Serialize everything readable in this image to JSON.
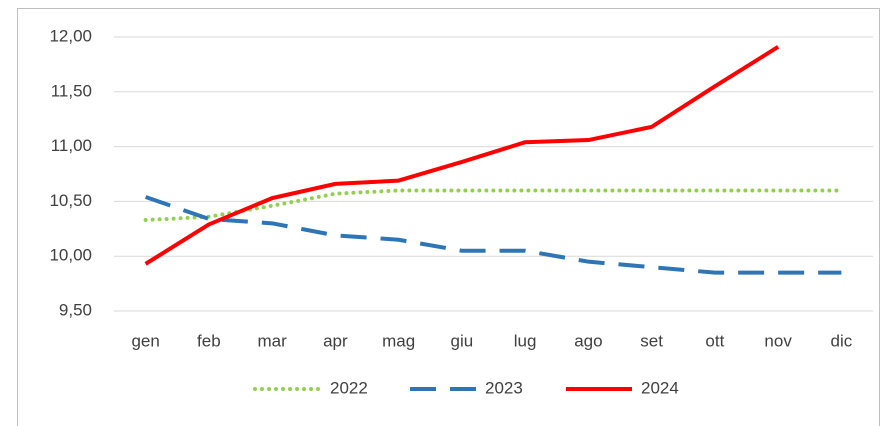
{
  "chart_data": {
    "type": "line",
    "categories": [
      "gen",
      "feb",
      "mar",
      "apr",
      "mag",
      "giu",
      "lug",
      "ago",
      "set",
      "ott",
      "nov",
      "dic"
    ],
    "series": [
      {
        "name": "2022",
        "color": "#92d050",
        "style": "dotted",
        "values": [
          10.33,
          10.36,
          10.46,
          10.57,
          10.6,
          10.6,
          10.6,
          10.6,
          10.6,
          10.6,
          10.6,
          10.6
        ]
      },
      {
        "name": "2023",
        "color": "#2e75b6",
        "style": "dashed",
        "values": [
          10.54,
          10.34,
          10.3,
          10.19,
          10.15,
          10.05,
          10.05,
          9.95,
          9.9,
          9.85,
          9.85,
          9.85
        ]
      },
      {
        "name": "2024",
        "color": "#ff0000",
        "style": "solid",
        "values": [
          9.93,
          10.29,
          10.53,
          10.66,
          10.69,
          10.86,
          11.04,
          11.06,
          11.18,
          11.55,
          11.91,
          null
        ]
      }
    ],
    "ylim": [
      9.5,
      12
    ],
    "yticks": [
      {
        "value": 9.5,
        "label": "9,50"
      },
      {
        "value": 10,
        "label": "10,00"
      },
      {
        "value": 10.5,
        "label": "10,50"
      },
      {
        "value": 11,
        "label": "11,00"
      },
      {
        "value": 11.5,
        "label": "11,50"
      },
      {
        "value": 12,
        "label": "12,00"
      }
    ],
    "grid": true,
    "legend": "bottom"
  }
}
